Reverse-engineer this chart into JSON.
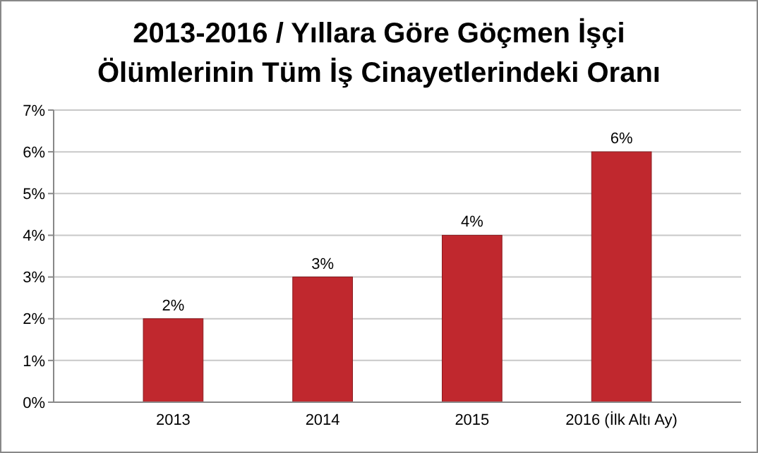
{
  "chart_data": {
    "type": "bar",
    "title": "2013-2016 / Yıllara Göre Göçmen İşçi\nÖlümlerinin Tüm İş Cinayetlerindeki Oranı",
    "categories": [
      "2013",
      "2014",
      "2015",
      "2016 (İlk Altı Ay)"
    ],
    "values": [
      2,
      3,
      4,
      6
    ],
    "value_labels": [
      "2%",
      "3%",
      "4%",
      "6%"
    ],
    "color": "#c0282e",
    "ylim": [
      0,
      7
    ],
    "yticks": [
      {
        "value": 0,
        "label": "0%"
      },
      {
        "value": 1,
        "label": "1%"
      },
      {
        "value": 2,
        "label": "2%"
      },
      {
        "value": 3,
        "label": "3%"
      },
      {
        "value": 4,
        "label": "4%"
      },
      {
        "value": 5,
        "label": "5%"
      },
      {
        "value": 6,
        "label": "6%"
      },
      {
        "value": 7,
        "label": "7%"
      }
    ],
    "grid": "y"
  }
}
